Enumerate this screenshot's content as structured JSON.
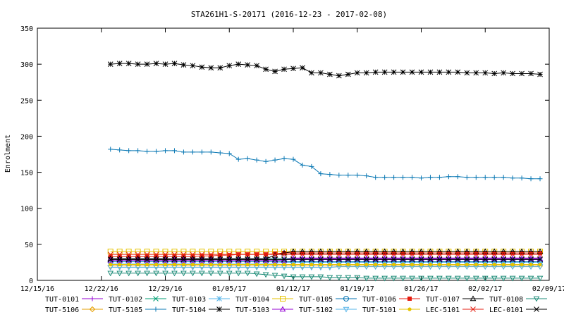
{
  "chart_data": {
    "type": "line",
    "title": "STA261H1-S-20171 (2016-12-23 - 2017-02-08)",
    "xlabel": "",
    "ylabel": "Enrolment",
    "ylim": [
      0,
      350
    ],
    "yticks": [
      0,
      50,
      100,
      150,
      200,
      250,
      300,
      350
    ],
    "x_ticks": [
      "12/15/16",
      "12/22/16",
      "12/29/16",
      "01/05/17",
      "01/12/17",
      "01/19/17",
      "01/26/17",
      "02/02/17",
      "02/09/17"
    ],
    "x_start": "2016-12-15",
    "x_end": "2017-02-09",
    "dates": [
      "2016-12-23",
      "2016-12-24",
      "2016-12-25",
      "2016-12-26",
      "2016-12-27",
      "2016-12-28",
      "2016-12-29",
      "2016-12-30",
      "2016-12-31",
      "2017-01-01",
      "2017-01-02",
      "2017-01-03",
      "2017-01-04",
      "2017-01-05",
      "2017-01-06",
      "2017-01-07",
      "2017-01-08",
      "2017-01-09",
      "2017-01-10",
      "2017-01-11",
      "2017-01-12",
      "2017-01-13",
      "2017-01-14",
      "2017-01-15",
      "2017-01-16",
      "2017-01-17",
      "2017-01-18",
      "2017-01-19",
      "2017-01-20",
      "2017-01-21",
      "2017-01-22",
      "2017-01-23",
      "2017-01-24",
      "2017-01-25",
      "2017-01-26",
      "2017-01-27",
      "2017-01-28",
      "2017-01-29",
      "2017-01-30",
      "2017-01-31",
      "2017-02-01",
      "2017-02-02",
      "2017-02-03",
      "2017-02-04",
      "2017-02-05",
      "2017-02-06",
      "2017-02-07",
      "2017-02-08"
    ],
    "grid": false,
    "legend_position": "bottom",
    "series": [
      {
        "name": "TUT-0101",
        "color": "#9400d3",
        "marker": "plus",
        "values": [
          30,
          30,
          30,
          30,
          30,
          30,
          30,
          30,
          30,
          30,
          30,
          30,
          30,
          30,
          30,
          30,
          30,
          30,
          30,
          30,
          31,
          31,
          31,
          31,
          31,
          31,
          31,
          31,
          31,
          31,
          31,
          31,
          31,
          31,
          31,
          31,
          31,
          31,
          31,
          31,
          31,
          31,
          31,
          31,
          31,
          31,
          31,
          31
        ]
      },
      {
        "name": "TUT-0102",
        "color": "#009e73",
        "marker": "x",
        "values": [
          30,
          30,
          30,
          30,
          30,
          30,
          30,
          30,
          30,
          30,
          30,
          30,
          30,
          30,
          30,
          30,
          30,
          30,
          30,
          30,
          30,
          30,
          30,
          30,
          30,
          30,
          30,
          30,
          30,
          30,
          30,
          30,
          30,
          30,
          30,
          30,
          30,
          30,
          30,
          30,
          30,
          30,
          30,
          30,
          30,
          30,
          30,
          30
        ]
      },
      {
        "name": "TUT-0103",
        "color": "#56b4e9",
        "marker": "star",
        "values": [
          24,
          24,
          24,
          24,
          24,
          24,
          24,
          24,
          24,
          24,
          24,
          24,
          24,
          24,
          24,
          24,
          24,
          24,
          24,
          25,
          25,
          25,
          25,
          25,
          25,
          25,
          25,
          25,
          25,
          25,
          25,
          25,
          25,
          25,
          25,
          25,
          25,
          25,
          25,
          25,
          25,
          25,
          25,
          25,
          25,
          25,
          25,
          25
        ]
      },
      {
        "name": "TUT-0104",
        "color": "#e6c300",
        "marker": "box",
        "values": [
          40,
          40,
          40,
          40,
          40,
          40,
          40,
          40,
          40,
          40,
          40,
          40,
          40,
          40,
          40,
          40,
          40,
          40,
          40,
          40,
          40,
          40,
          40,
          40,
          40,
          40,
          40,
          40,
          40,
          40,
          40,
          40,
          40,
          40,
          40,
          40,
          40,
          40,
          40,
          40,
          40,
          40,
          40,
          40,
          40,
          40,
          40,
          40
        ]
      },
      {
        "name": "TUT-0105",
        "color": "#0072b2",
        "marker": "circle",
        "values": [
          26,
          26,
          26,
          26,
          26,
          26,
          26,
          26,
          26,
          26,
          26,
          26,
          26,
          26,
          26,
          26,
          26,
          26,
          26,
          26,
          26,
          26,
          26,
          26,
          26,
          26,
          26,
          26,
          26,
          26,
          26,
          26,
          26,
          26,
          26,
          26,
          26,
          26,
          26,
          26,
          26,
          26,
          26,
          26,
          26,
          26,
          26,
          26
        ]
      },
      {
        "name": "TUT-0106",
        "color": "#e51e10",
        "marker": "pentagon",
        "values": [
          33,
          33,
          33,
          33,
          33,
          33,
          33,
          33,
          33,
          33,
          34,
          34,
          35,
          35,
          36,
          36,
          36,
          36,
          37,
          38,
          38,
          38,
          38,
          38,
          38,
          38,
          38,
          38,
          38,
          38,
          38,
          38,
          38,
          38,
          38,
          38,
          38,
          38,
          38,
          38,
          38,
          38,
          38,
          38,
          38,
          38,
          38,
          38
        ]
      },
      {
        "name": "TUT-0107",
        "color": "#000000",
        "marker": "triangle",
        "values": [
          30,
          30,
          30,
          30,
          30,
          30,
          30,
          30,
          30,
          30,
          30,
          30,
          30,
          30,
          30,
          30,
          30,
          30,
          35,
          38,
          40,
          40,
          40,
          40,
          40,
          40,
          40,
          40,
          40,
          40,
          40,
          40,
          40,
          40,
          40,
          40,
          40,
          40,
          40,
          40,
          40,
          40,
          40,
          40,
          40,
          40,
          40,
          40
        ]
      },
      {
        "name": "TUT-0108",
        "color": "#1e8c78",
        "marker": "invtriangle",
        "values": [
          10,
          10,
          10,
          10,
          10,
          10,
          10,
          10,
          10,
          10,
          10,
          10,
          10,
          10,
          10,
          10,
          9,
          8,
          7,
          6,
          5,
          5,
          5,
          5,
          4,
          4,
          4,
          4,
          3,
          3,
          3,
          3,
          3,
          3,
          3,
          3,
          3,
          3,
          3,
          3,
          3,
          3,
          3,
          3,
          3,
          3,
          3,
          3
        ]
      },
      {
        "name": "TUT-5106",
        "color": "#e69f00",
        "marker": "diamond",
        "values": [
          20,
          20,
          20,
          20,
          20,
          20,
          20,
          20,
          20,
          20,
          20,
          20,
          20,
          20,
          20,
          20,
          20,
          20,
          20,
          20,
          20,
          20,
          20,
          20,
          20,
          20,
          20,
          20,
          20,
          20,
          20,
          20,
          20,
          20,
          20,
          20,
          20,
          20,
          20,
          20,
          20,
          20,
          20,
          20,
          20,
          20,
          20,
          20
        ]
      },
      {
        "name": "TUT-5105",
        "color": "#0a78b4",
        "marker": "plus",
        "values": [
          182,
          181,
          180,
          180,
          179,
          179,
          180,
          180,
          178,
          178,
          178,
          178,
          177,
          176,
          168,
          169,
          167,
          165,
          167,
          169,
          168,
          160,
          158,
          148,
          147,
          146,
          146,
          146,
          145,
          143,
          143,
          143,
          143,
          143,
          142,
          143,
          143,
          144,
          144,
          143,
          143,
          143,
          143,
          143,
          142,
          142,
          141,
          141
        ]
      },
      {
        "name": "TUT-5104",
        "color": "#000000",
        "marker": "star",
        "values": [
          300,
          301,
          301,
          300,
          300,
          301,
          300,
          301,
          299,
          298,
          296,
          295,
          295,
          298,
          300,
          299,
          298,
          293,
          290,
          293,
          294,
          295,
          288,
          288,
          286,
          284,
          286,
          288,
          288,
          289,
          289,
          289,
          289,
          289,
          289,
          289,
          289,
          289,
          289,
          288,
          288,
          288,
          287,
          288,
          287,
          287,
          287,
          286
        ]
      },
      {
        "name": "TUT-5103",
        "color": "#9400d3",
        "marker": "triangle",
        "values": [
          28,
          28,
          28,
          28,
          28,
          28,
          28,
          28,
          28,
          28,
          28,
          28,
          28,
          28,
          28,
          28,
          28,
          28,
          28,
          28,
          30,
          30,
          30,
          30,
          30,
          30,
          30,
          30,
          30,
          30,
          30,
          30,
          30,
          30,
          30,
          30,
          30,
          30,
          30,
          30,
          30,
          30,
          30,
          30,
          30,
          30,
          30,
          30
        ]
      },
      {
        "name": "TUT-5102",
        "color": "#56b4e9",
        "marker": "invtriangle",
        "values": [
          18,
          18,
          18,
          18,
          18,
          18,
          18,
          18,
          18,
          18,
          18,
          18,
          18,
          18,
          18,
          18,
          18,
          18,
          18,
          18,
          18,
          18,
          18,
          18,
          18,
          19,
          19,
          19,
          19,
          19,
          19,
          19,
          19,
          19,
          19,
          19,
          19,
          19,
          19,
          19,
          19,
          19,
          19,
          19,
          19,
          19,
          19,
          19
        ]
      },
      {
        "name": "TUT-5101",
        "color": "#e6c300",
        "marker": "dot",
        "values": [
          22,
          22,
          22,
          22,
          22,
          22,
          22,
          22,
          22,
          22,
          22,
          22,
          22,
          22,
          22,
          22,
          22,
          22,
          22,
          22,
          22,
          22,
          22,
          22,
          22,
          22,
          22,
          22,
          22,
          22,
          22,
          22,
          22,
          22,
          22,
          22,
          22,
          22,
          22,
          22,
          22,
          22,
          22,
          22,
          22,
          22,
          22,
          22
        ]
      },
      {
        "name": "LEC-5101",
        "color": "#e51e10",
        "marker": "x",
        "values": [
          36,
          36,
          36,
          36,
          36,
          36,
          36,
          36,
          36,
          36,
          36,
          36,
          36,
          36,
          36,
          36,
          36,
          36,
          36,
          36,
          36,
          36,
          36,
          36,
          36,
          36,
          36,
          36,
          36,
          36,
          36,
          36,
          36,
          36,
          36,
          36,
          36,
          36,
          36,
          36,
          36,
          36,
          36,
          36,
          36,
          36,
          36,
          36
        ]
      },
      {
        "name": "LEC-0101",
        "color": "#000000",
        "marker": "x",
        "values": [
          29,
          29,
          29,
          29,
          29,
          29,
          29,
          29,
          29,
          29,
          29,
          29,
          29,
          29,
          29,
          29,
          29,
          29,
          29,
          29,
          29,
          29,
          29,
          29,
          29,
          29,
          29,
          29,
          29,
          29,
          29,
          29,
          29,
          29,
          29,
          29,
          29,
          29,
          29,
          29,
          29,
          29,
          29,
          29,
          29,
          29,
          29,
          29
        ]
      }
    ]
  }
}
